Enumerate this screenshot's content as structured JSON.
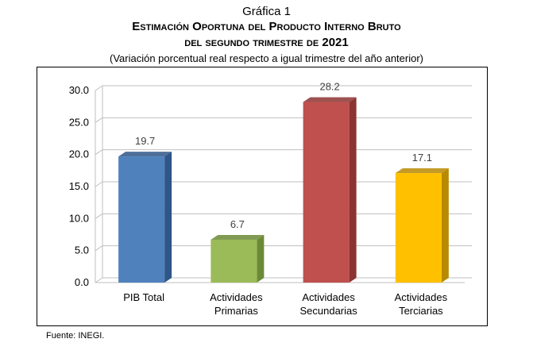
{
  "header": {
    "label": "Gráfica 1",
    "title_line1": "Estimación Oportuna del Producto Interno Bruto",
    "title_line2": "del segundo trimestre de 2021",
    "subtitle": "(Variación porcentual real respecto a igual trimestre del año anterior)"
  },
  "source": "Fuente: INEGI.",
  "chart_data": {
    "type": "bar",
    "title": "Estimación Oportuna del Producto Interno Bruto del segundo trimestre de 2021",
    "subtitle": "(Variación porcentual real respecto a igual trimestre del año anterior)",
    "categories": [
      [
        "PIB Total"
      ],
      [
        "Actividades",
        "Primarias"
      ],
      [
        "Actividades",
        "Secundarias"
      ],
      [
        "Actividades",
        "Terciarias"
      ]
    ],
    "values": [
      19.7,
      6.7,
      28.2,
      17.1
    ],
    "value_labels": [
      "19.7",
      "6.7",
      "28.2",
      "17.1"
    ],
    "colors": [
      "#4F81BD",
      "#9BBB59",
      "#C0504D",
      "#FFC000"
    ],
    "dark_colors": [
      "#2E5687",
      "#6B8A36",
      "#8C3431",
      "#B88A00"
    ],
    "ylim": [
      0,
      30
    ],
    "yticks": [
      "0.0",
      "5.0",
      "10.0",
      "15.0",
      "20.0",
      "25.0",
      "30.0"
    ],
    "grid": true,
    "legend": "none",
    "xlabel": "",
    "ylabel": ""
  }
}
